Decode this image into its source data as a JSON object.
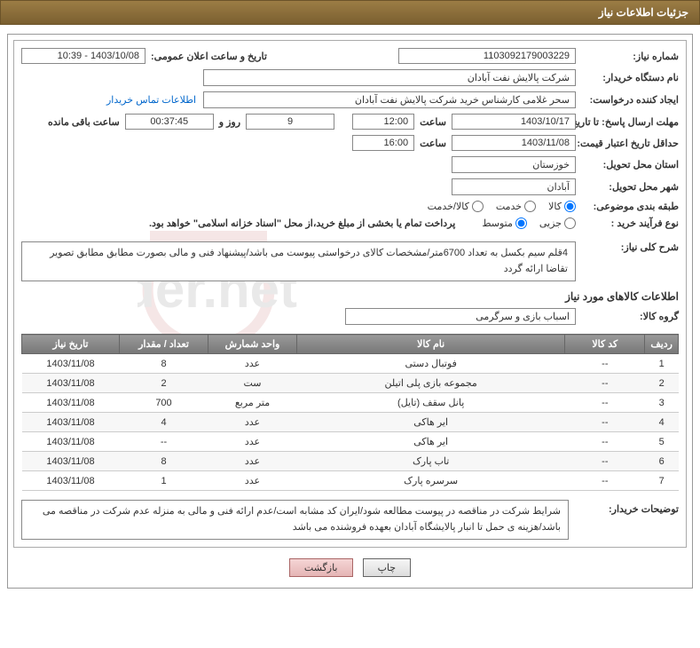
{
  "header": {
    "title": "جزئیات اطلاعات نیاز"
  },
  "form": {
    "need_no_label": "شماره نیاز:",
    "need_no": "1103092179003229",
    "announce_label": "تاریخ و ساعت اعلان عمومی:",
    "announce_val": "1403/10/08 - 10:39",
    "buyer_org_label": "نام دستگاه خریدار:",
    "buyer_org": "شرکت پالایش نفت آبادان",
    "requester_label": "ایجاد کننده درخواست:",
    "requester": "سحر غلامی کارشناس خرید  شرکت پالایش نفت آبادان",
    "contact_link": "اطلاعات تماس خریدار",
    "deadline_label": "مهلت ارسال پاسخ: تا تاریخ:",
    "deadline_date": "1403/10/17",
    "time_label": "ساعت",
    "deadline_time": "12:00",
    "days_remain": "9",
    "days_label": "روز و",
    "time_remain": "00:37:45",
    "remain_label": "ساعت باقی مانده",
    "validity_label": "حداقل تاریخ اعتبار قیمت: تا تاریخ:",
    "validity_date": "1403/11/08",
    "validity_time": "16:00",
    "province_label": "استان محل تحویل:",
    "province": "خوزستان",
    "city_label": "شهر محل تحویل:",
    "city": "آبادان",
    "category_label": "طبقه بندی موضوعی:",
    "cat_opts": {
      "goods": "کالا",
      "service": "خدمت",
      "goods_service": "کالا/خدمت"
    },
    "process_label": "نوع فرآیند خرید :",
    "process_opts": {
      "partial": "جزیی",
      "medium": "متوسط"
    },
    "process_note": "پرداخت تمام یا بخشی از مبلغ خرید،از محل \"اسناد خزانه اسلامی\" خواهد بود.",
    "summary_label": "شرح کلی نیاز:",
    "summary": "4قلم سیم بکسل به تعداد 6700متر/مشخصات کالای درخواستی پیوست می باشد/پیشنهاد فنی و مالی بصورت مطابق مطابق تصویر تقاضا ارائه گردد"
  },
  "items_section": {
    "title": "اطلاعات کالاهای مورد نیاز",
    "group_label": "گروه کالا:",
    "group_val": "اسباب بازی و سرگرمی",
    "columns": {
      "row": "ردیف",
      "code": "کد کالا",
      "name": "نام کالا",
      "unit": "واحد شمارش",
      "qty": "تعداد / مقدار",
      "date": "تاریخ نیاز"
    },
    "rows": [
      {
        "r": "1",
        "code": "--",
        "name": "فوتبال دستی",
        "unit": "عدد",
        "qty": "8",
        "date": "1403/11/08"
      },
      {
        "r": "2",
        "code": "--",
        "name": "مجموعه بازی پلی اتیلن",
        "unit": "ست",
        "qty": "2",
        "date": "1403/11/08"
      },
      {
        "r": "3",
        "code": "--",
        "name": "پانل سقف (تایل)",
        "unit": "متر مربع",
        "qty": "700",
        "date": "1403/11/08"
      },
      {
        "r": "4",
        "code": "--",
        "name": "ایر هاکی",
        "unit": "عدد",
        "qty": "4",
        "date": "1403/11/08"
      },
      {
        "r": "5",
        "code": "--",
        "name": "ایر هاکی",
        "unit": "عدد",
        "qty": "--",
        "date": "1403/11/08"
      },
      {
        "r": "6",
        "code": "--",
        "name": "تاب پارک",
        "unit": "عدد",
        "qty": "8",
        "date": "1403/11/08"
      },
      {
        "r": "7",
        "code": "--",
        "name": "سرسره پارک",
        "unit": "عدد",
        "qty": "1",
        "date": "1403/11/08"
      }
    ]
  },
  "buyer_notes": {
    "label": "توضیحات خریدار:",
    "text": "شرایط شرکت در مناقصه در پیوست مطالعه شود/ایران کد مشابه است/عدم ارائه فنی و مالی به منزله عدم شرکت در مناقصه می باشد/هزینه ی حمل تا انبار پالایشگاه آبادان بعهده فروشنده می باشد"
  },
  "buttons": {
    "print": "چاپ",
    "back": "بازگشت"
  },
  "colors": {
    "header_bg": "#8a6d3b",
    "border": "#999999",
    "th_bg": "#888888",
    "link": "#0066cc",
    "watermark": "#b33a3a"
  }
}
